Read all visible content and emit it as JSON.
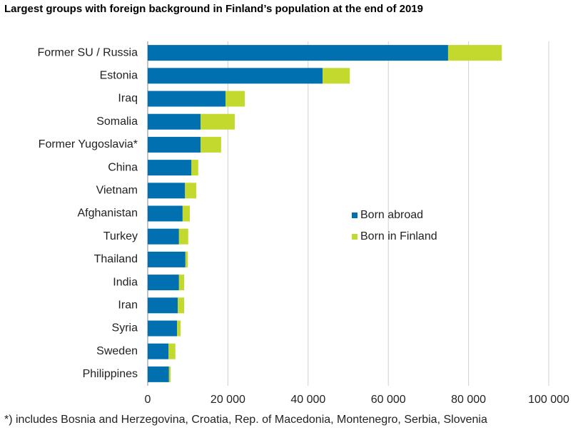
{
  "chart_data": {
    "type": "stacked-barh",
    "title": "Largest groups with foreign background in Finland’s population at the end of 2019",
    "footnote": "*) includes Bosnia and Herzegovina, Croatia, Rep. of Macedonia, Montenegro, Serbia, Slovenia",
    "categories": [
      "Former SU / Russia",
      "Estonia",
      "Iraq",
      "Somalia",
      "Former Yugoslavia*",
      "China",
      "Vietnam",
      "Afghanistan",
      "Turkey",
      "Thailand",
      "India",
      "Iran",
      "Syria",
      "Sweden",
      "Philippines"
    ],
    "series": [
      {
        "name": "Born abroad",
        "color": "#0070b0",
        "values": [
          74900,
          43600,
          19400,
          13200,
          13200,
          10900,
          9300,
          8700,
          7800,
          9400,
          7800,
          7500,
          7300,
          5200,
          5300
        ]
      },
      {
        "name": "Born in Finland",
        "color": "#c3d92e",
        "values": [
          13400,
          6800,
          4800,
          8500,
          5100,
          1700,
          2800,
          1800,
          2300,
          600,
          1300,
          1600,
          900,
          1700,
          400
        ]
      }
    ],
    "xlim": [
      0,
      100000
    ],
    "xticks": [
      0,
      {
        "value": 20000,
        "label": "20 000"
      },
      {
        "value": 40000,
        "label": "40 000"
      },
      {
        "value": 60000,
        "label": "60 000"
      },
      {
        "value": 80000,
        "label": "80 000"
      },
      {
        "value": 100000,
        "label": "100 000"
      }
    ],
    "grid": true
  }
}
